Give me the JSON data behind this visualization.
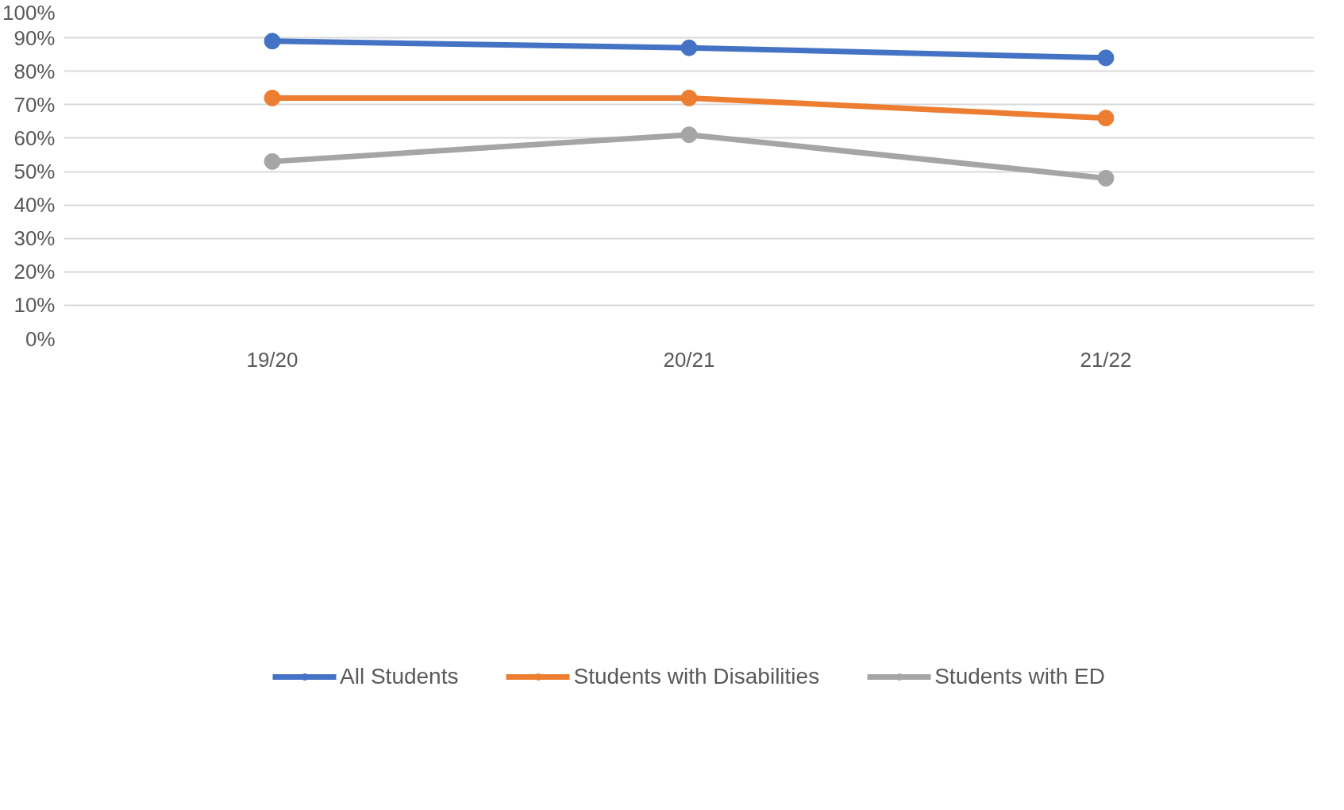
{
  "chart_data": {
    "type": "line",
    "categories": [
      "19/20",
      "20/21",
      "21/22"
    ],
    "series": [
      {
        "name": "All Students",
        "color": "#4472c4",
        "values": [
          89,
          87,
          84
        ]
      },
      {
        "name": "Students with Disabilities",
        "color": "#ed7d31",
        "values": [
          72,
          72,
          66
        ]
      },
      {
        "name": "Students with ED",
        "color": "#a5a5a5",
        "values": [
          53,
          61,
          48
        ]
      }
    ],
    "ylim": [
      0,
      100
    ],
    "yticks": [
      {
        "value": 0,
        "label": "0%"
      },
      {
        "value": 10,
        "label": "10%"
      },
      {
        "value": 20,
        "label": "20%"
      },
      {
        "value": 30,
        "label": "30%"
      },
      {
        "value": 40,
        "label": "40%"
      },
      {
        "value": 50,
        "label": "50%"
      },
      {
        "value": 60,
        "label": "60%"
      },
      {
        "value": 70,
        "label": "70%"
      },
      {
        "value": 80,
        "label": "80%"
      },
      {
        "value": 90,
        "label": "90%"
      },
      {
        "value": 100,
        "label": "100%"
      }
    ],
    "grid": "y",
    "legend": "bottom",
    "marker": "circle",
    "line_style": "solid"
  }
}
